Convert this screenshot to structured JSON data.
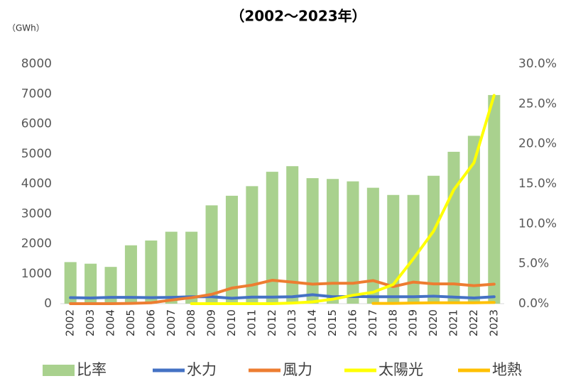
{
  "chart_data": {
    "type": "bar_line",
    "title": "（2002～2023年）",
    "y_label": "（GWh）",
    "categories": [
      "2002",
      "2003",
      "2004",
      "2005",
      "2006",
      "2007",
      "2008",
      "2009",
      "2010",
      "2011",
      "2012",
      "2013",
      "2014",
      "2015",
      "2016",
      "2017",
      "2018",
      "2019",
      "2020",
      "2021",
      "2022",
      "2023"
    ],
    "series": [
      {
        "name": "比率",
        "type": "bar",
        "axis": "y2",
        "color": "#a9d18e",
        "values": [
          5.2,
          5.0,
          4.6,
          7.3,
          7.9,
          9.0,
          9.0,
          12.3,
          13.5,
          14.7,
          16.5,
          17.2,
          15.7,
          15.6,
          15.3,
          14.5,
          13.6,
          13.6,
          16.0,
          19.0,
          21.0,
          26.1
        ]
      },
      {
        "name": "水力",
        "type": "line",
        "color": "#4472c4",
        "values": [
          200,
          190,
          210,
          210,
          200,
          210,
          230,
          230,
          180,
          220,
          220,
          230,
          300,
          230,
          240,
          230,
          230,
          230,
          250,
          220,
          190,
          230
        ]
      },
      {
        "name": "風力",
        "type": "line",
        "color": "#ed7d31",
        "values": [
          0,
          0,
          0,
          10,
          30,
          120,
          200,
          310,
          520,
          620,
          780,
          720,
          650,
          680,
          680,
          770,
          570,
          720,
          660,
          660,
          600,
          650
        ]
      },
      {
        "name": "太陽光",
        "type": "line",
        "color": "#ffff00",
        "values": [
          null,
          null,
          null,
          null,
          null,
          null,
          0,
          0,
          0,
          0,
          0,
          20,
          60,
          150,
          280,
          380,
          640,
          1500,
          2420,
          3800,
          4700,
          6950
        ]
      },
      {
        "name": "地熱",
        "type": "line",
        "color": "#ffc000",
        "values": [
          null,
          null,
          null,
          null,
          null,
          null,
          null,
          null,
          null,
          null,
          null,
          null,
          null,
          null,
          null,
          10,
          10,
          20,
          30,
          30,
          30,
          40
        ]
      }
    ],
    "ylim": [
      0,
      8000
    ],
    "yticks": [
      0,
      1000,
      2000,
      3000,
      4000,
      5000,
      6000,
      7000,
      8000
    ],
    "y2lim": [
      0,
      30
    ],
    "y2ticks": [
      {
        "value": 0,
        "label": "0.0%"
      },
      {
        "value": 5,
        "label": "5.0%"
      },
      {
        "value": 10,
        "label": "10.0%"
      },
      {
        "value": 15,
        "label": "15.0%"
      },
      {
        "value": 20,
        "label": "20.0%"
      },
      {
        "value": 25,
        "label": "25.0%"
      },
      {
        "value": 30,
        "label": "30.0%"
      }
    ],
    "legend": "bottom"
  }
}
